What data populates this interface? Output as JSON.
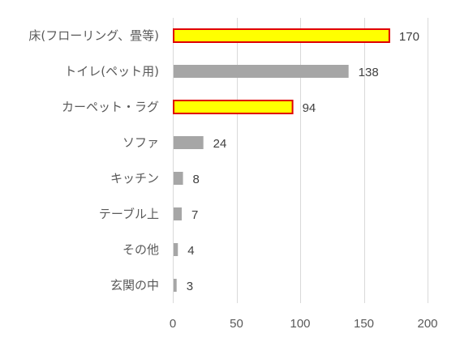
{
  "chart_data": {
    "type": "bar",
    "orientation": "horizontal",
    "categories": [
      "床(フローリング、畳等)",
      "トイレ(ペット用)",
      "カーペット・ラグ",
      "ソファ",
      "キッチン",
      "テーブル上",
      "その他",
      "玄関の中"
    ],
    "values": [
      170,
      138,
      94,
      24,
      8,
      7,
      4,
      3
    ],
    "highlighted": [
      true,
      false,
      true,
      false,
      false,
      false,
      false,
      false
    ],
    "data_labels": [
      "170",
      "138",
      "94",
      "24",
      "8",
      "7",
      "4",
      "3"
    ],
    "xlim": [
      0,
      200
    ],
    "xticks": [
      0,
      50,
      100,
      150,
      200
    ],
    "xtick_labels": [
      "0",
      "50",
      "100",
      "150",
      "200"
    ],
    "grid": "vertical",
    "title": "",
    "xlabel": "",
    "ylabel": "",
    "colors": {
      "default_bar": "#a6a6a6",
      "highlight_fill": "#ffff00",
      "highlight_border": "#e00000",
      "grid": "#d9d9d9"
    }
  }
}
